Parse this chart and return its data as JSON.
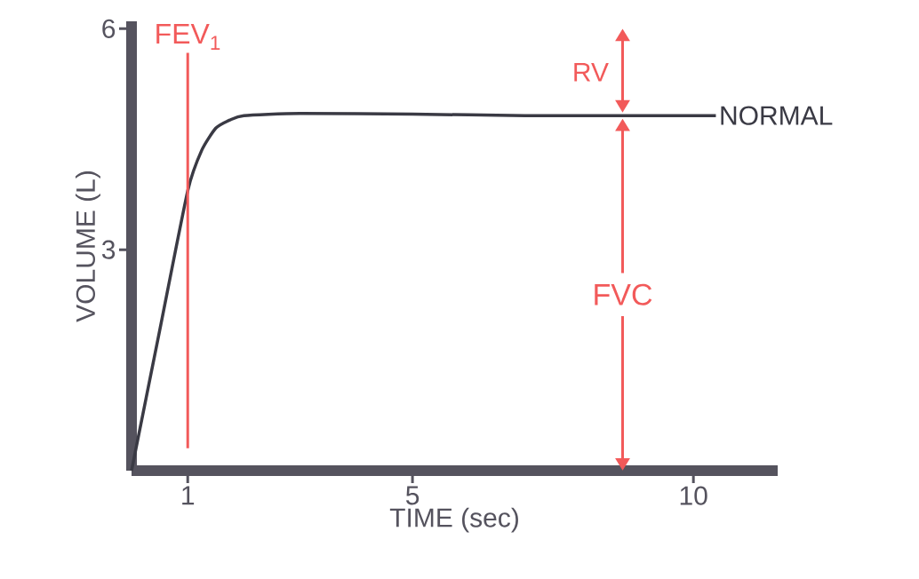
{
  "chart_data": {
    "type": "line",
    "xlabel": "TIME (sec)",
    "ylabel": "VOLUME (L)",
    "xlim": [
      0,
      11.5
    ],
    "ylim": [
      0,
      6.1
    ],
    "xticks": [
      1,
      5,
      10
    ],
    "yticks": [
      3,
      6
    ],
    "grid": false,
    "series": [
      {
        "name": "NORMAL",
        "color": "#3a3a44",
        "x": [
          0,
          0.5,
          1,
          1.25,
          1.5,
          1.75,
          2,
          3,
          5,
          7,
          9,
          10.4
        ],
        "values": [
          0,
          1.9,
          3.8,
          4.35,
          4.65,
          4.76,
          4.82,
          4.85,
          4.84,
          4.82,
          4.82,
          4.82
        ]
      }
    ],
    "ref_lines": [
      {
        "axis": "x",
        "value": 1,
        "label": "FEV$_{1}$",
        "color": "#f25a5a"
      }
    ],
    "annotations": [
      "RV",
      "FVC"
    ]
  }
}
